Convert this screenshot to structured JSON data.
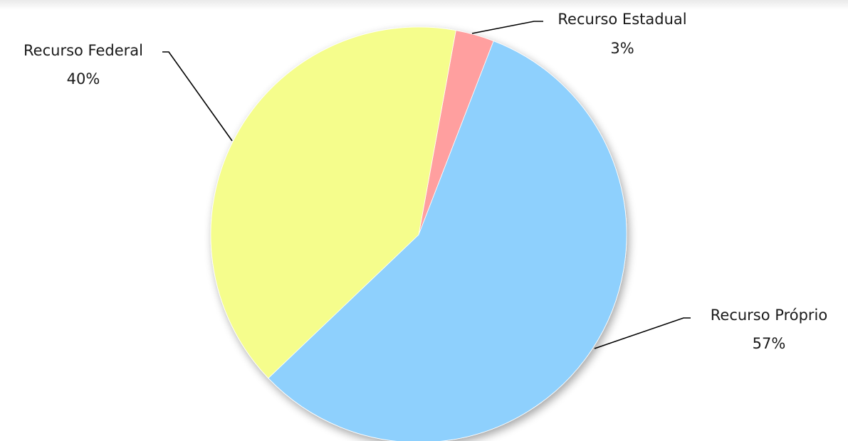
{
  "chart_data": {
    "type": "pie",
    "title": "",
    "categories": [
      "Recurso Estadual",
      "Recurso Próprio",
      "Recurso Federal"
    ],
    "values": [
      3,
      57,
      40
    ],
    "percent_labels": [
      "3%",
      "57%",
      "40%"
    ],
    "colors": [
      "#ff9f9f",
      "#8ed0fd",
      "#f5fd8c"
    ],
    "start": "12 o'clock, clockwise",
    "legend": "none (labels outside with leader lines)"
  }
}
